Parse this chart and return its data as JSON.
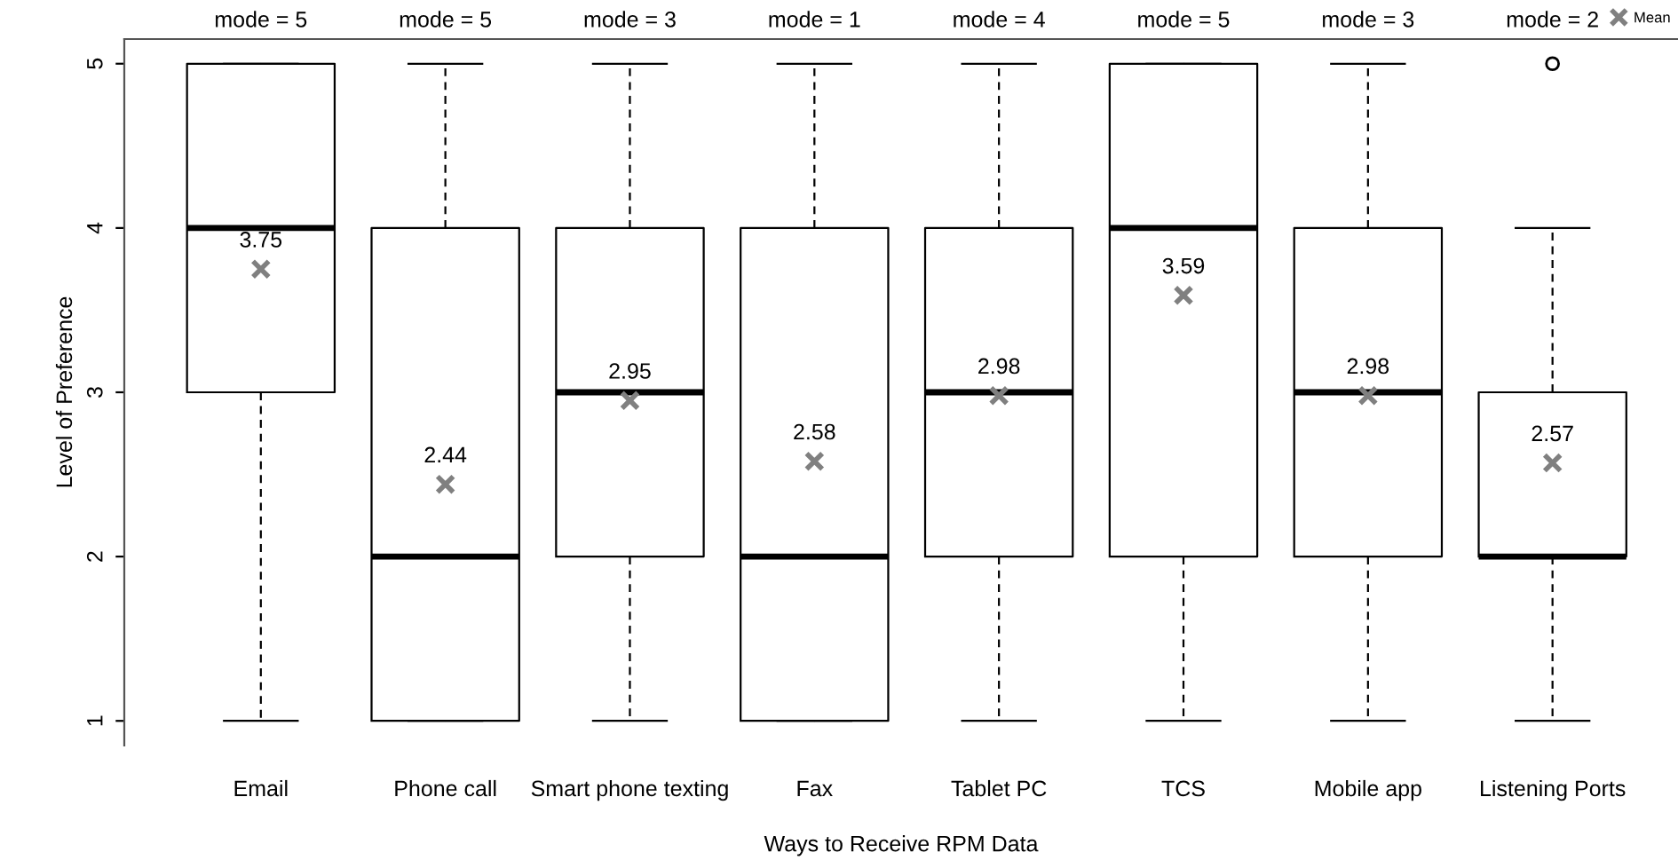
{
  "chart_data": {
    "type": "box",
    "xlabel": "Ways to Receive RPM Data",
    "ylabel": "Level of Preference",
    "categories": [
      "Email",
      "Phone call",
      "Smart phone texting",
      "Fax",
      "Tablet PC",
      "TCS",
      "Mobile app",
      "Listening Ports"
    ],
    "boxes": [
      {
        "low": 1,
        "q1": 3,
        "median": 4,
        "q3": 5,
        "high": 5
      },
      {
        "low": 1,
        "q1": 1,
        "median": 2,
        "q3": 4,
        "high": 5
      },
      {
        "low": 1,
        "q1": 2,
        "median": 3,
        "q3": 4,
        "high": 5
      },
      {
        "low": 1,
        "q1": 1,
        "median": 2,
        "q3": 4,
        "high": 5
      },
      {
        "low": 1,
        "q1": 2,
        "median": 3,
        "q3": 4,
        "high": 5
      },
      {
        "low": 1,
        "q1": 2,
        "median": 4,
        "q3": 5,
        "high": 5
      },
      {
        "low": 1,
        "q1": 2,
        "median": 3,
        "q3": 4,
        "high": 5
      },
      {
        "low": 1,
        "q1": 2,
        "median": 2,
        "q3": 3,
        "high": 4,
        "outliers": [
          5
        ]
      }
    ],
    "series": [
      {
        "name": "Mean",
        "type": "scatter",
        "color": "#808080",
        "marker": "cross",
        "data_labels": true,
        "x": [
          "Email",
          "Phone call",
          "Smart phone texting",
          "Fax",
          "Tablet PC",
          "TCS",
          "Mobile app",
          "Listening Ports"
        ],
        "values": [
          3.75,
          2.44,
          2.95,
          2.58,
          2.98,
          3.59,
          2.98,
          2.57
        ]
      }
    ],
    "annotations": [
      "mode = 5",
      "mode = 5",
      "mode = 3",
      "mode = 1",
      "mode = 4",
      "mode = 5",
      "mode = 3",
      "mode = 2"
    ],
    "ylim": [
      0.85,
      5.15
    ],
    "yticks": [
      1,
      2,
      3,
      4,
      5
    ],
    "grid": false,
    "legend": "top right"
  }
}
